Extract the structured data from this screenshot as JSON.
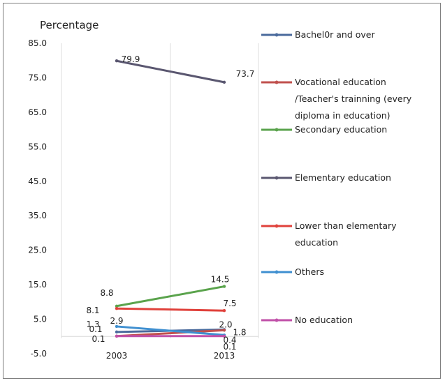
{
  "chart_data": {
    "type": "line",
    "title": "",
    "ylabel": "Percentage",
    "xlabel": "",
    "categories": [
      "2003",
      "2013"
    ],
    "ylim": [
      -5,
      85
    ],
    "yticks": [
      "85.0",
      "75.0",
      "65.0",
      "55.0",
      "45.0",
      "35.0",
      "25.0",
      "15.0",
      "5.0",
      "-5.0"
    ],
    "grid": "vertical",
    "legend": "right",
    "series": [
      {
        "name": "Bachel0r and over",
        "lines": [
          "Bachel0r and over"
        ],
        "values": [
          1.3,
          2.0
        ],
        "labels": [
          "1.3",
          "2.0"
        ],
        "color": "#4a6a9c"
      },
      {
        "name": "Vocational education /Teacher's trainning (every diploma in education)",
        "lines": [
          "Vocational education",
          "/Teacher's trainning (every",
          "diploma in education)"
        ],
        "values": [
          0.1,
          1.8
        ],
        "labels": [
          "0.1",
          "1.8"
        ],
        "color": "#c0504d"
      },
      {
        "name": "Secondary education",
        "lines": [
          "Secondary education"
        ],
        "values": [
          8.8,
          14.5
        ],
        "labels": [
          "8.8",
          "14.5"
        ],
        "color": "#5aa34c"
      },
      {
        "name": "Elementary education",
        "lines": [
          "Elementary education"
        ],
        "values": [
          79.9,
          73.7
        ],
        "labels": [
          "79.9",
          "73.7"
        ],
        "color": "#5a5770"
      },
      {
        "name": "Lower than elementary education",
        "lines": [
          "Lower than elementary",
          "education"
        ],
        "values": [
          8.1,
          7.5
        ],
        "labels": [
          "8.1",
          "7.5"
        ],
        "color": "#e0413b"
      },
      {
        "name": "Others",
        "lines": [
          "Others"
        ],
        "values": [
          2.9,
          0.4
        ],
        "labels": [
          "2.9",
          "0.4"
        ],
        "color": "#3f8fd0"
      },
      {
        "name": "No education",
        "lines": [
          "No education"
        ],
        "values": [
          0.1,
          0.1
        ],
        "labels": [
          "0.1",
          "0.1"
        ],
        "color": "#c050a8"
      }
    ]
  }
}
